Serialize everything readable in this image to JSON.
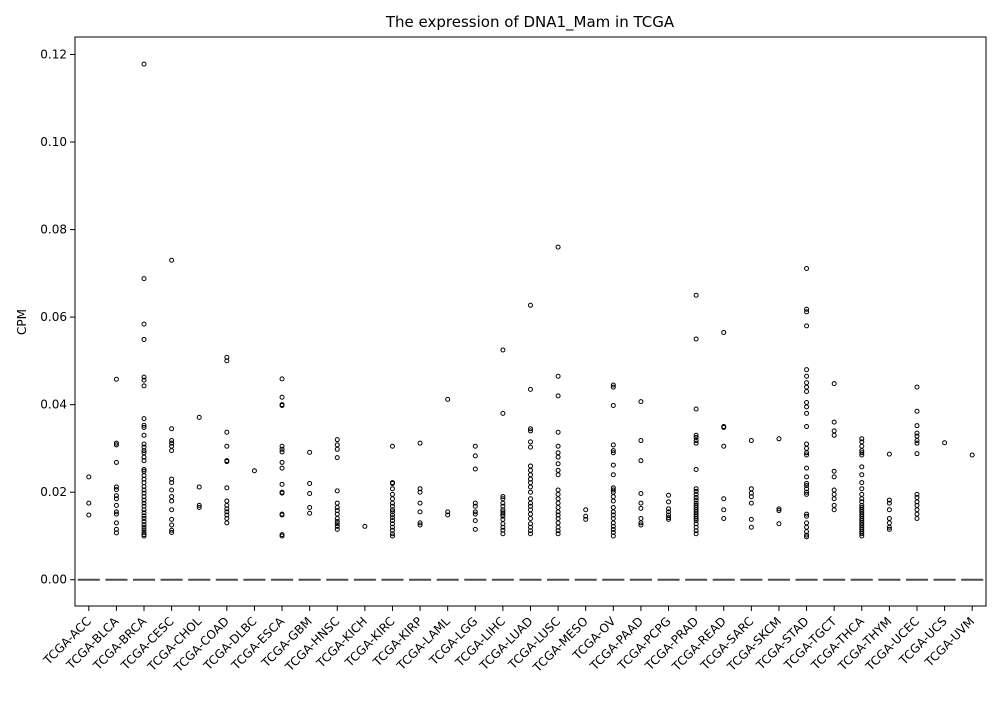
{
  "chart_data": {
    "type": "box",
    "title": "The expression of DNA1_Mam in TCGA",
    "xlabel": "",
    "ylabel": "CPM",
    "ylim": [
      -0.006,
      0.124
    ],
    "yticks": [
      0.0,
      0.02,
      0.04,
      0.06,
      0.08,
      0.1,
      0.12
    ],
    "ytick_labels": [
      "0.00",
      "0.02",
      "0.04",
      "0.06",
      "0.08",
      "0.10",
      "0.12"
    ],
    "grid": false,
    "legend": "none",
    "colors": {
      "box": "#4c4c4c",
      "outlier_edge": "#000000",
      "axis": "#000000",
      "background": "#ffffff"
    },
    "categories": [
      "TCGA-ACC",
      "TCGA-BLCA",
      "TCGA-BRCA",
      "TCGA-CESC",
      "TCGA-CHOL",
      "TCGA-COAD",
      "TCGA-DLBC",
      "TCGA-ESCA",
      "TCGA-GBM",
      "TCGA-HNSC",
      "TCGA-KICH",
      "TCGA-KIRC",
      "TCGA-KIRP",
      "TCGA-LAML",
      "TCGA-LGG",
      "TCGA-LIHC",
      "TCGA-LUAD",
      "TCGA-LUSC",
      "TCGA-MESO",
      "TCGA-OV",
      "TCGA-PAAD",
      "TCGA-PCPG",
      "TCGA-PRAD",
      "TCGA-READ",
      "TCGA-SARC",
      "TCGA-SKCM",
      "TCGA-STAD",
      "TCGA-TGCT",
      "TCGA-THCA",
      "TCGA-THYM",
      "TCGA-UCEC",
      "TCGA-UCS",
      "TCGA-UVM"
    ],
    "box_stats": {
      "q1": 0,
      "median": 0,
      "q3": 0,
      "whisker_low": 0,
      "whisker_high": 0
    },
    "outliers": [
      [
        0.0235,
        0.0175,
        0.0148
      ],
      [
        0.0458,
        0.0312,
        0.0308,
        0.0268,
        0.0212,
        0.0206,
        0.0192,
        0.0185,
        0.017,
        0.0155,
        0.015,
        0.013,
        0.0115,
        0.0107
      ],
      [
        0.1178,
        0.0688,
        0.0584,
        0.0549,
        0.0463,
        0.0456,
        0.0443,
        0.0368,
        0.0353,
        0.0348,
        0.033,
        0.031,
        0.0303,
        0.0295,
        0.029,
        0.028,
        0.0272,
        0.0252,
        0.0248,
        0.0238,
        0.023,
        0.0222,
        0.0213,
        0.0205,
        0.0198,
        0.019,
        0.0182,
        0.0175,
        0.0168,
        0.016,
        0.0153,
        0.0146,
        0.014,
        0.0133,
        0.0126,
        0.012,
        0.0114,
        0.0108,
        0.0103,
        0.01
      ],
      [
        0.073,
        0.0345,
        0.0318,
        0.0312,
        0.0305,
        0.0295,
        0.023,
        0.0222,
        0.0205,
        0.019,
        0.018,
        0.016,
        0.0138,
        0.0125,
        0.0113,
        0.0108
      ],
      [
        0.0371,
        0.0212,
        0.017,
        0.0165
      ],
      [
        0.0508,
        0.05,
        0.0337,
        0.0305,
        0.0272,
        0.027,
        0.021,
        0.018,
        0.017,
        0.0162,
        0.0155,
        0.0148,
        0.014,
        0.013
      ],
      [
        0.0249
      ],
      [
        0.0459,
        0.0417,
        0.04,
        0.0398,
        0.0305,
        0.0298,
        0.0292,
        0.0268,
        0.0255,
        0.0218,
        0.02,
        0.0198,
        0.015,
        0.0148,
        0.0103,
        0.01
      ],
      [
        0.0291,
        0.022,
        0.0197,
        0.0165,
        0.0152
      ],
      [
        0.032,
        0.0308,
        0.0298,
        0.0279,
        0.0203,
        0.0175,
        0.0165,
        0.0158,
        0.015,
        0.014,
        0.0133,
        0.0128,
        0.0122,
        0.0115
      ],
      [
        0.0122
      ],
      [
        0.0305,
        0.0222,
        0.022,
        0.0208,
        0.0195,
        0.0185,
        0.0175,
        0.0168,
        0.016,
        0.0155,
        0.0148,
        0.0142,
        0.0135,
        0.0128,
        0.012,
        0.0113,
        0.0105,
        0.01
      ],
      [
        0.0312,
        0.0208,
        0.02,
        0.0175,
        0.0155,
        0.013,
        0.0125
      ],
      [
        0.0412,
        0.0155,
        0.0148
      ],
      [
        0.0305,
        0.0283,
        0.0253,
        0.0175,
        0.0168,
        0.0155,
        0.015,
        0.0135,
        0.0115
      ],
      [
        0.0525,
        0.038,
        0.019,
        0.0185,
        0.0175,
        0.0168,
        0.016,
        0.0155,
        0.015,
        0.0145,
        0.0138,
        0.0128,
        0.012,
        0.0113,
        0.0105
      ],
      [
        0.0627,
        0.0435,
        0.0345,
        0.034,
        0.0315,
        0.0303,
        0.026,
        0.025,
        0.024,
        0.023,
        0.0222,
        0.0212,
        0.02,
        0.0185,
        0.0175,
        0.0168,
        0.016,
        0.015,
        0.014,
        0.0128,
        0.012,
        0.0112,
        0.0105
      ],
      [
        0.076,
        0.0465,
        0.042,
        0.0337,
        0.0305,
        0.029,
        0.028,
        0.0265,
        0.025,
        0.024,
        0.0205,
        0.0195,
        0.0185,
        0.0175,
        0.0165,
        0.0155,
        0.0148,
        0.014,
        0.013,
        0.012,
        0.0112,
        0.0105
      ],
      [
        0.016,
        0.0145,
        0.0138
      ],
      [
        0.0445,
        0.044,
        0.0398,
        0.0308,
        0.0295,
        0.029,
        0.0262,
        0.024,
        0.021,
        0.0205,
        0.02,
        0.019,
        0.018,
        0.0165,
        0.0155,
        0.0148,
        0.014,
        0.013,
        0.0122,
        0.0115,
        0.0108,
        0.01
      ],
      [
        0.0407,
        0.0318,
        0.0272,
        0.0197,
        0.0175,
        0.0163,
        0.014,
        0.013,
        0.0125
      ],
      [
        0.0193,
        0.0178,
        0.0162,
        0.0155,
        0.0148,
        0.0142,
        0.0138
      ],
      [
        0.065,
        0.055,
        0.039,
        0.033,
        0.0325,
        0.0318,
        0.0312,
        0.0252,
        0.0208,
        0.0202,
        0.0195,
        0.0188,
        0.0182,
        0.0175,
        0.017,
        0.0165,
        0.016,
        0.0155,
        0.015,
        0.0145,
        0.014,
        0.0135,
        0.0128,
        0.012,
        0.0112,
        0.0105
      ],
      [
        0.0565,
        0.035,
        0.0348,
        0.0305,
        0.0185,
        0.016,
        0.014
      ],
      [
        0.0318,
        0.0208,
        0.0198,
        0.019,
        0.0175,
        0.0138,
        0.012
      ],
      [
        0.0322,
        0.0162,
        0.0158,
        0.0128
      ],
      [
        0.0711,
        0.0618,
        0.0612,
        0.058,
        0.048,
        0.0465,
        0.045,
        0.044,
        0.043,
        0.0405,
        0.0395,
        0.038,
        0.035,
        0.031,
        0.03,
        0.029,
        0.0285,
        0.0255,
        0.0235,
        0.022,
        0.0215,
        0.0208,
        0.02,
        0.0195,
        0.015,
        0.0145,
        0.013,
        0.012,
        0.011,
        0.0102,
        0.0098
      ],
      [
        0.0448,
        0.036,
        0.034,
        0.033,
        0.0248,
        0.0235,
        0.0205,
        0.0195,
        0.0185,
        0.017,
        0.016
      ],
      [
        0.0322,
        0.0315,
        0.0305,
        0.0295,
        0.029,
        0.0285,
        0.0258,
        0.024,
        0.0222,
        0.0208,
        0.0195,
        0.0185,
        0.0178,
        0.017,
        0.0165,
        0.016,
        0.0155,
        0.015,
        0.0145,
        0.014,
        0.0135,
        0.013,
        0.0125,
        0.012,
        0.0115,
        0.011,
        0.0105,
        0.01
      ],
      [
        0.0287,
        0.0182,
        0.0175,
        0.016,
        0.014,
        0.013,
        0.012,
        0.0115
      ],
      [
        0.044,
        0.0385,
        0.0352,
        0.0335,
        0.0328,
        0.0318,
        0.0312,
        0.0288,
        0.0195,
        0.0188,
        0.0178,
        0.017,
        0.016,
        0.015,
        0.014
      ],
      [
        0.0313
      ],
      [
        0.0285
      ]
    ]
  }
}
